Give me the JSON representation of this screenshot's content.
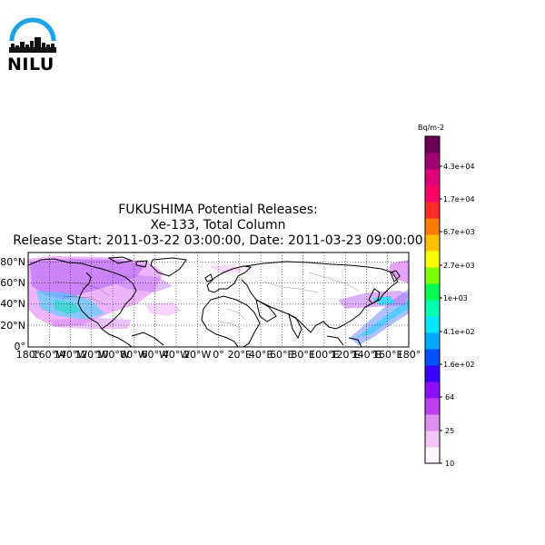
{
  "logo": {
    "text": "NILU"
  },
  "title": {
    "line1": "FUKUSHIMA Potential Releases:",
    "line2": "Xe-133, Total Column",
    "line3": "Release Start: 2011-03-22  03:00:00, Date: 2011-03-23  09:00:00"
  },
  "map": {
    "lat_labels": [
      "80°N",
      "60°N",
      "40°N",
      "20°N",
      "0°"
    ],
    "lon_labels": [
      "180°",
      "160°W",
      "140°W",
      "120°W",
      "100°W",
      "80°W",
      "60°W",
      "40°W",
      "20°W",
      "0°",
      "20°E",
      "40°E",
      "60°E",
      "80°E",
      "100°E",
      "120°E",
      "140°E",
      "160°E",
      "180°"
    ]
  },
  "colorbar": {
    "unit": "Bq/m-2",
    "ticks": [
      "4.3e+04",
      "1.7e+04",
      "6.7e+03",
      "2.7e+03",
      "1e+03",
      "4.1e+02",
      "1.6e+02",
      "64",
      "25",
      "10"
    ],
    "colors": [
      "#fff6ff",
      "#f1c5f5",
      "#dd8ff0",
      "#c040f0",
      "#8b10ff",
      "#3a00ff",
      "#0050ff",
      "#00a8ff",
      "#00e8ff",
      "#00ffb0",
      "#00ff50",
      "#7fff00",
      "#f8ff00",
      "#ffc000",
      "#ff7a00",
      "#ff2a2a",
      "#ff0066",
      "#e0007a",
      "#a00070",
      "#6a0050"
    ]
  }
}
